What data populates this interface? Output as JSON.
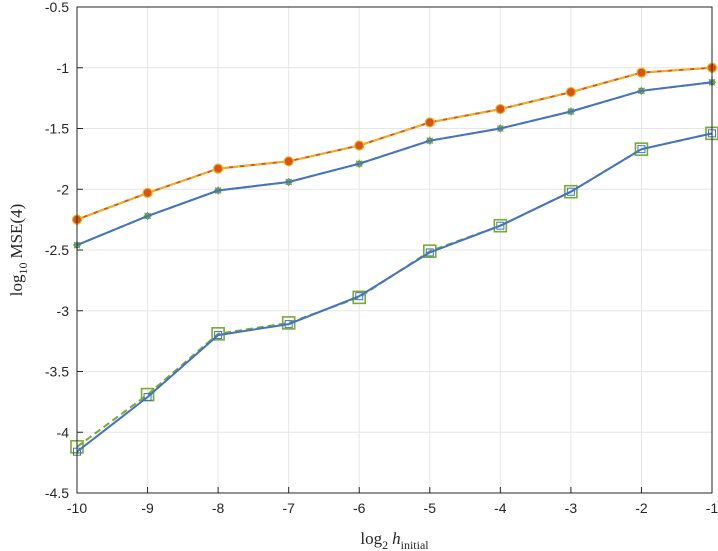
{
  "chart_data": {
    "type": "line",
    "title": "",
    "xlabel": {
      "base": "log",
      "sub": "2",
      "var": "h",
      "var_sub": "initial"
    },
    "ylabel": {
      "base": "log",
      "sub": "10",
      "rest": "MSE(4)"
    },
    "xlim": [
      -10,
      -1
    ],
    "ylim": [
      -4.5,
      -0.5
    ],
    "xticks": [
      -10,
      -9,
      -8,
      -7,
      -6,
      -5,
      -4,
      -3,
      -2,
      -1
    ],
    "xtick_labels": [
      "-10",
      "-9",
      "-8",
      "-7",
      "-6",
      "-5",
      "-4",
      "-3",
      "-2",
      "-1"
    ],
    "yticks": [
      -4.5,
      -4,
      -3.5,
      -3,
      -2.5,
      -2,
      -1.5,
      -1,
      -0.5
    ],
    "ytick_labels": [
      "-4.5",
      "-4",
      "-3.5",
      "-3",
      "-2.5",
      "-2",
      "-1.5",
      "-1",
      "-0.5"
    ],
    "grid": true,
    "x": [
      -10,
      -9,
      -8,
      -7,
      -6,
      -5,
      -4,
      -3,
      -2,
      -1
    ],
    "series": [
      {
        "values": [
          -2.25,
          -2.03,
          -1.83,
          -1.77,
          -1.64,
          -1.45,
          -1.34,
          -1.2,
          -1.04,
          -1.0
        ],
        "color": "#D95319",
        "style": "solid",
        "marker": "none"
      },
      {
        "values": [
          -2.25,
          -2.03,
          -1.83,
          -1.77,
          -1.64,
          -1.45,
          -1.34,
          -1.2,
          -1.04,
          -1.0
        ],
        "color": "#EDB120",
        "style": "dashed",
        "marker": "circle"
      },
      {
        "values": [
          -2.46,
          -2.22,
          -2.01,
          -1.94,
          -1.79,
          -1.6,
          -1.5,
          -1.36,
          -1.19,
          -1.12
        ],
        "color": "#77AC30",
        "style": "dashed",
        "marker": "star"
      },
      {
        "values": [
          -2.46,
          -2.22,
          -2.01,
          -1.94,
          -1.79,
          -1.6,
          -1.5,
          -1.36,
          -1.19,
          -1.12
        ],
        "color": "#4472C4",
        "style": "solid",
        "marker": "none"
      },
      {
        "values": [
          -4.12,
          -3.69,
          -3.19,
          -3.1,
          -2.89,
          -2.51,
          -2.3,
          -2.02,
          -1.67,
          -1.54
        ],
        "color": "#77AC30",
        "style": "dashed",
        "marker": "square"
      },
      {
        "values": [
          -4.16,
          -3.71,
          -3.2,
          -3.11,
          -2.88,
          -2.52,
          -2.3,
          -2.02,
          -1.67,
          -1.54
        ],
        "color": "#4472C4",
        "style": "solid",
        "marker": "small-square"
      }
    ]
  }
}
